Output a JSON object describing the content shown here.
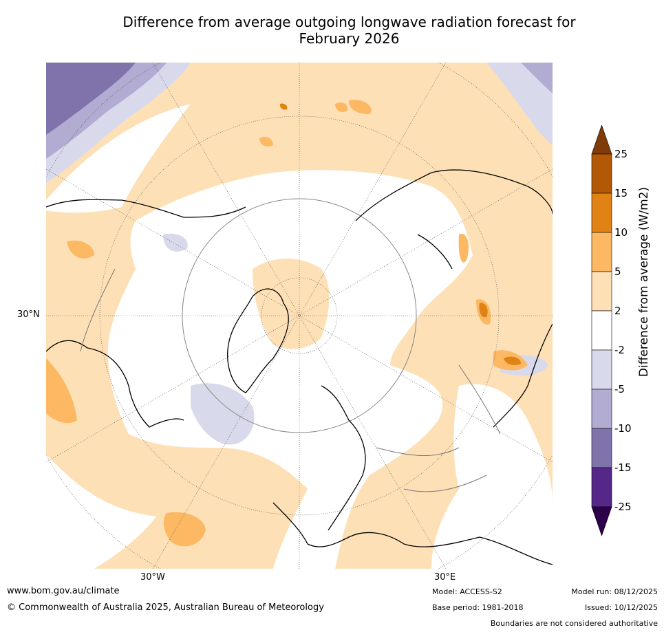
{
  "title": {
    "line1": "Difference from average outgoing longwave radiation forecast for",
    "line2": "February 2026"
  },
  "map": {
    "projection": "north polar stereographic",
    "lat_label": "30°N",
    "lon_labels": [
      "30°W",
      "30°E"
    ]
  },
  "colorbar": {
    "label": "Difference from average (W/m2)",
    "ticks": [
      "25",
      "15",
      "10",
      "5",
      "2",
      "-2",
      "-5",
      "-10",
      "-15",
      "-25"
    ],
    "bins": [
      {
        "range": "> 25",
        "color": "#7f3b08"
      },
      {
        "range": "15 to 25",
        "color": "#b35806"
      },
      {
        "range": "10 to 15",
        "color": "#e08214"
      },
      {
        "range": "5 to 10",
        "color": "#fdb863"
      },
      {
        "range": "2 to 5",
        "color": "#fee0b6"
      },
      {
        "range": "-2 to 2",
        "color": "#ffffff"
      },
      {
        "range": "-5 to -2",
        "color": "#d8daeb"
      },
      {
        "range": "-10 to -5",
        "color": "#b2abd2"
      },
      {
        "range": "-15 to -10",
        "color": "#8073ac"
      },
      {
        "range": "-25 to -15",
        "color": "#542788"
      },
      {
        "range": "< -25",
        "color": "#2d004b"
      }
    ]
  },
  "footer": {
    "website": "www.bom.gov.au/climate",
    "copyright": "© Commonwealth of Australia 2025, Australian Bureau of Meteorology",
    "model": "Model: ACCESS-S2",
    "base_period": "Base period: 1981-2018",
    "model_run": "Model run: 08/12/2025",
    "issued": "Issued: 10/12/2025",
    "disclaimer": "Boundaries are not considered authoritative"
  }
}
